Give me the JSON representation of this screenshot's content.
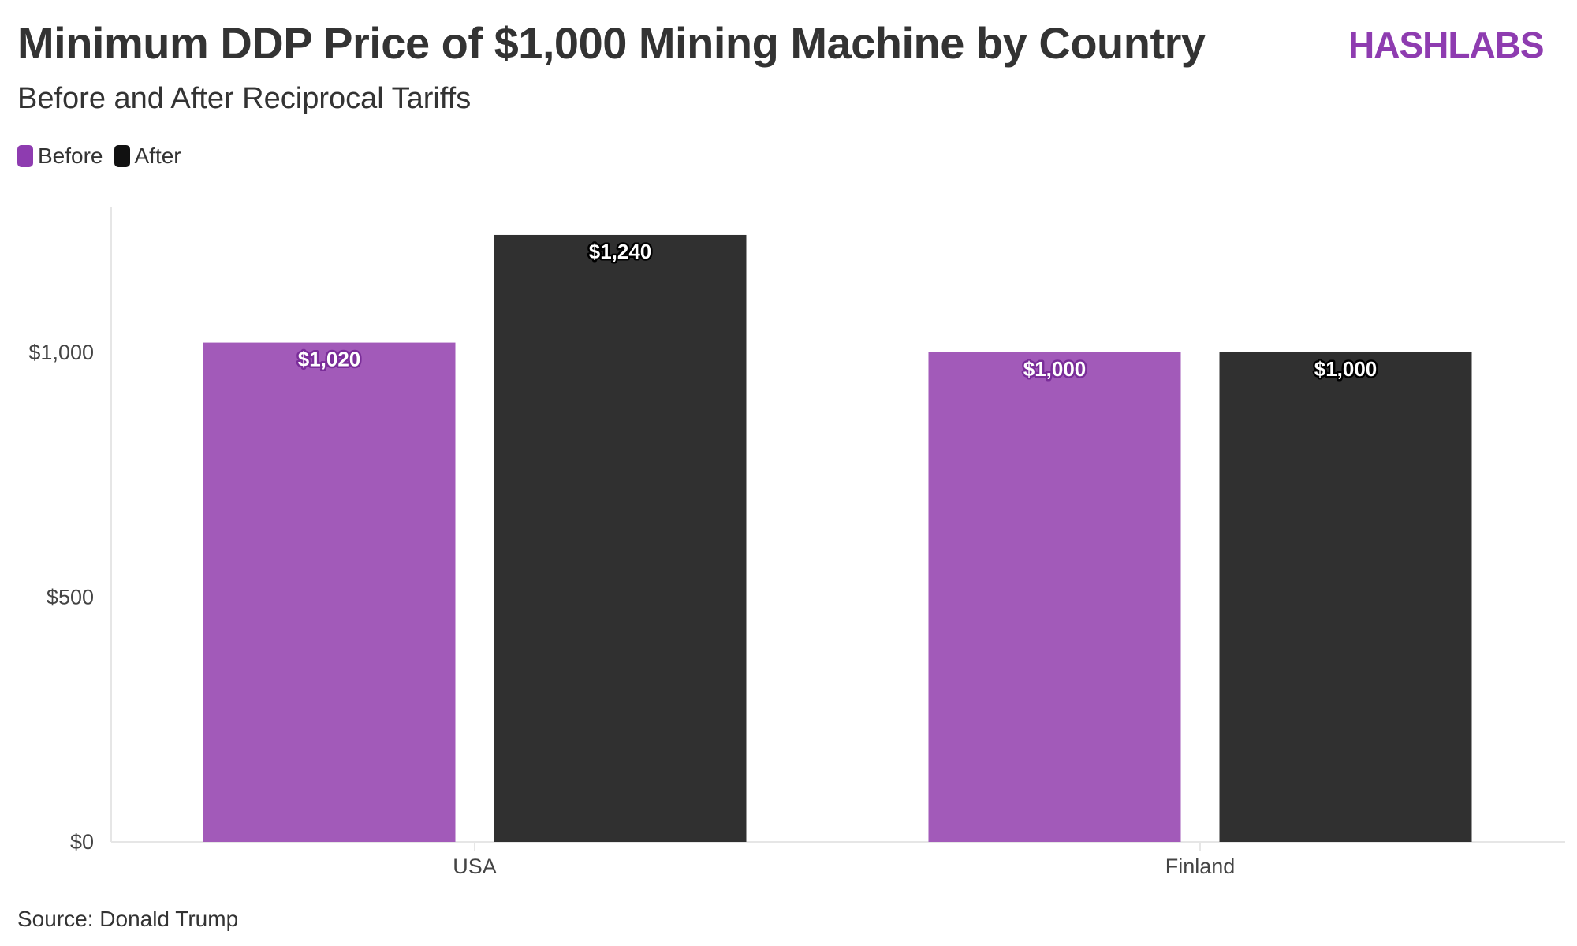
{
  "title": "Minimum DDP Price of $1,000 Mining Machine by Country",
  "subtitle": "Before and After Reciprocal Tariffs",
  "logo": "HASHLABS",
  "source": "Source: Donald Trump",
  "colors": {
    "before": "#a25ab9",
    "after": "#303030",
    "brand": "#8e3cb0"
  },
  "chart_data": {
    "type": "bar",
    "title": "Minimum DDP Price of $1,000 Mining Machine by Country",
    "subtitle": "Before and After Reciprocal Tariffs",
    "categories": [
      "USA",
      "Finland"
    ],
    "series": [
      {
        "name": "Before",
        "values": [
          1020,
          1000
        ],
        "labels": [
          "$1,020",
          "$1,000"
        ]
      },
      {
        "name": "After",
        "values": [
          1240,
          1000
        ],
        "labels": [
          "$1,240",
          "$1,000"
        ]
      }
    ],
    "yticks": [
      0,
      500,
      1000
    ],
    "ytick_labels": [
      "$0",
      "$500",
      "$1,000"
    ],
    "ylim": [
      0,
      1300
    ],
    "xlabel": "",
    "ylabel": "",
    "legend": "top-left",
    "grid": false
  }
}
